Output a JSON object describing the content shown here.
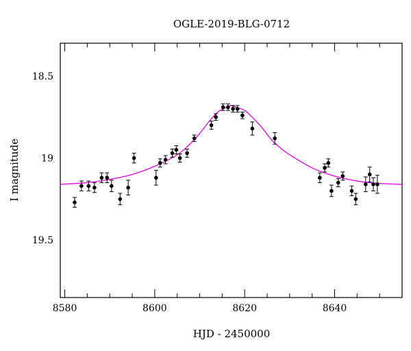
{
  "chart_data": {
    "type": "scatter",
    "title": "OGLE-2019-BLG-0712",
    "xlabel": "HJD - 2450000",
    "ylabel": "I magnitude",
    "xlim": [
      8579,
      8655
    ],
    "ylim": [
      19.85,
      18.3
    ],
    "y_inverted": true,
    "grid": false,
    "x_ticks": [
      8580,
      8600,
      8620,
      8640
    ],
    "x_tick_labels": [
      "8580",
      "8600",
      "8620",
      "8640"
    ],
    "y_ticks": [
      18.5,
      19,
      19.5
    ],
    "y_tick_labels": [
      "18.5",
      "19",
      "19.5"
    ],
    "colors": {
      "data": "#000000",
      "model": "#e600e6"
    },
    "series": [
      {
        "kind": "points_with_errorbars",
        "x": [
          8582.2,
          8583.7,
          8585.3,
          8586.6,
          8588.2,
          8589.4,
          8590.4,
          8592.3,
          8594.1,
          8595.4,
          8600.3,
          8601.2,
          8602.4,
          8603.9,
          8604.8,
          8605.6,
          8607.2,
          8608.8,
          8612.6,
          8613.6,
          8615.2,
          8616.3,
          8617.4,
          8618.4,
          8619.5,
          8621.7,
          8626.7,
          8636.7,
          8637.8,
          8638.6,
          8639.3,
          8640.8,
          8641.8,
          8643.8,
          8644.7,
          8646.9,
          8647.8,
          8648.6,
          8649.5
        ],
        "y": [
          19.27,
          19.17,
          19.17,
          19.18,
          19.12,
          19.12,
          19.17,
          19.25,
          19.18,
          19.0,
          19.12,
          19.03,
          19.01,
          18.97,
          18.95,
          19.0,
          18.97,
          18.88,
          18.8,
          18.75,
          18.69,
          18.69,
          18.7,
          18.7,
          18.74,
          18.82,
          18.88,
          19.12,
          19.06,
          19.03,
          19.2,
          19.15,
          19.11,
          19.2,
          19.25,
          19.16,
          19.1,
          19.16,
          19.16
        ],
        "yerr": [
          0.03,
          0.03,
          0.03,
          0.03,
          0.03,
          0.03,
          0.035,
          0.035,
          0.045,
          0.03,
          0.045,
          0.025,
          0.025,
          0.025,
          0.025,
          0.025,
          0.025,
          0.02,
          0.025,
          0.02,
          0.02,
          0.02,
          0.02,
          0.02,
          0.02,
          0.04,
          0.035,
          0.03,
          0.025,
          0.025,
          0.035,
          0.025,
          0.025,
          0.03,
          0.035,
          0.045,
          0.045,
          0.04,
          0.055
        ]
      },
      {
        "kind": "model_curve",
        "x": [
          8579,
          8585,
          8590,
          8595,
          8600,
          8605,
          8608,
          8610,
          8612,
          8614,
          8616,
          8617,
          8618,
          8620,
          8622,
          8624,
          8626,
          8628,
          8630,
          8635,
          8640,
          8645,
          8650,
          8655
        ],
        "y": [
          19.16,
          19.15,
          19.13,
          19.1,
          19.05,
          18.98,
          18.91,
          18.85,
          18.78,
          18.72,
          18.69,
          18.68,
          18.69,
          18.71,
          18.76,
          18.82,
          18.89,
          18.94,
          18.98,
          19.06,
          19.11,
          19.14,
          19.155,
          19.16
        ]
      }
    ]
  }
}
